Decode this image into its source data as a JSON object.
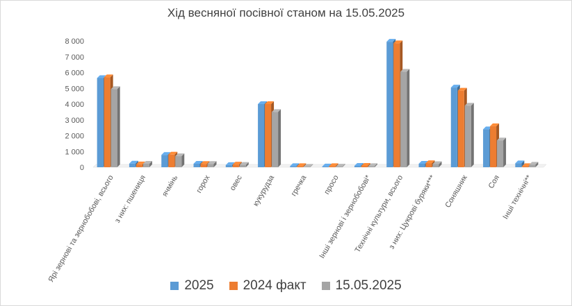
{
  "chart_data": {
    "type": "bar",
    "title": "Хід весняної посівної станом на 15.05.2025",
    "categories": [
      "Ярі зернові та зернобобові, всього",
      "з них:     пшениця",
      "ячмінь",
      "горох",
      "овес",
      "кукурудза",
      "гречка",
      "просо",
      "Інші зернові і зернобобові*",
      "Технічні культури, всього",
      "з них: Цукрові буряки***",
      "Соняшник",
      "Соя",
      "Інші технічні**"
    ],
    "y_ticks": [
      "0",
      "1 000",
      "2 000",
      "3 000",
      "4 000",
      "5 000",
      "6 000",
      "7 000",
      "8 000"
    ],
    "ylim": [
      0,
      8000
    ],
    "series": [
      {
        "name": "2025",
        "color": "#5B9BD5",
        "values": [
          5650,
          230,
          780,
          220,
          140,
          4000,
          70,
          50,
          90,
          7950,
          220,
          5050,
          2400,
          250
        ]
      },
      {
        "name": "2024 факт",
        "color": "#ED7D31",
        "values": [
          5700,
          180,
          800,
          210,
          170,
          4000,
          70,
          70,
          90,
          7850,
          260,
          4850,
          2600,
          70
        ]
      },
      {
        "name": "15.05.2025",
        "color": "#A5A5A5",
        "values": [
          4950,
          220,
          700,
          210,
          150,
          3500,
          30,
          40,
          70,
          6050,
          200,
          3900,
          1700,
          160
        ]
      }
    ],
    "legend_position": "bottom",
    "grid": false
  }
}
